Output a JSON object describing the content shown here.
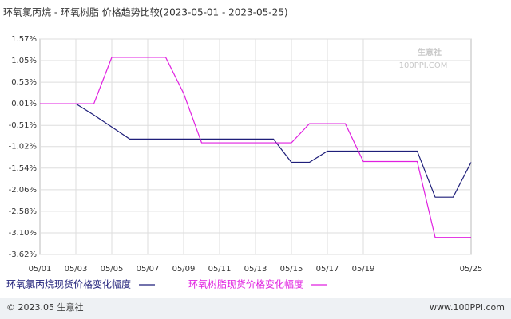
{
  "chart_data": {
    "type": "line",
    "title": "环氧氯丙烷 - 环氧树脂 价格趋势比较(2023-05-01 - 2023-05-25)",
    "categories": [
      "05/01",
      null,
      "05/03",
      null,
      "05/05",
      null,
      "05/07",
      null,
      "05/09",
      null,
      "05/11",
      null,
      "05/13",
      null,
      "05/15",
      null,
      "05/17",
      null,
      "05/19",
      null,
      null,
      null,
      null,
      null,
      "05/25"
    ],
    "series": [
      {
        "name": "环氧氯丙烷现货价格变化幅度",
        "color": "#1f1f7a",
        "values": [
          0.01,
          0.01,
          0.01,
          -0.26,
          -0.55,
          -0.84,
          -0.84,
          -0.84,
          -0.84,
          -0.84,
          -0.84,
          -0.84,
          -0.84,
          -0.84,
          -1.4,
          -1.4,
          -1.13,
          -1.13,
          -1.13,
          -1.13,
          -1.13,
          -1.13,
          -2.24,
          -2.24,
          -1.4
        ]
      },
      {
        "name": "环氧树脂现货价格变化幅度",
        "color": "#e020e0",
        "values": [
          0.01,
          0.01,
          0.01,
          0.01,
          1.13,
          1.13,
          1.13,
          1.13,
          0.26,
          -0.93,
          -0.93,
          -0.93,
          -0.93,
          -0.93,
          -0.93,
          -0.47,
          -0.47,
          -0.47,
          -1.38,
          -1.38,
          -1.38,
          -1.38,
          -3.21,
          -3.21,
          -3.21
        ]
      }
    ],
    "ylim": [
      -3.62,
      1.57
    ],
    "yticks": [
      {
        "value": 1.57,
        "label": "1.57%"
      },
      {
        "value": 1.05,
        "label": "1.05%"
      },
      {
        "value": 0.53,
        "label": "0.53%"
      },
      {
        "value": 0.01,
        "label": "0.01%"
      },
      {
        "value": -0.51,
        "label": "-0.51%"
      },
      {
        "value": -1.02,
        "label": "-1.02%"
      },
      {
        "value": -1.54,
        "label": "-1.54%"
      },
      {
        "value": -2.06,
        "label": "-2.06%"
      },
      {
        "value": -2.58,
        "label": "-2.58%"
      },
      {
        "value": -3.1,
        "label": "-3.10%"
      },
      {
        "value": -3.62,
        "label": "-3.62%"
      }
    ],
    "grid": true,
    "footer_left": "© 2023.05 生意社",
    "footer_right": "www.100PPI.com",
    "watermark": "生意社",
    "watermark_sub": "100PPI.COM"
  }
}
